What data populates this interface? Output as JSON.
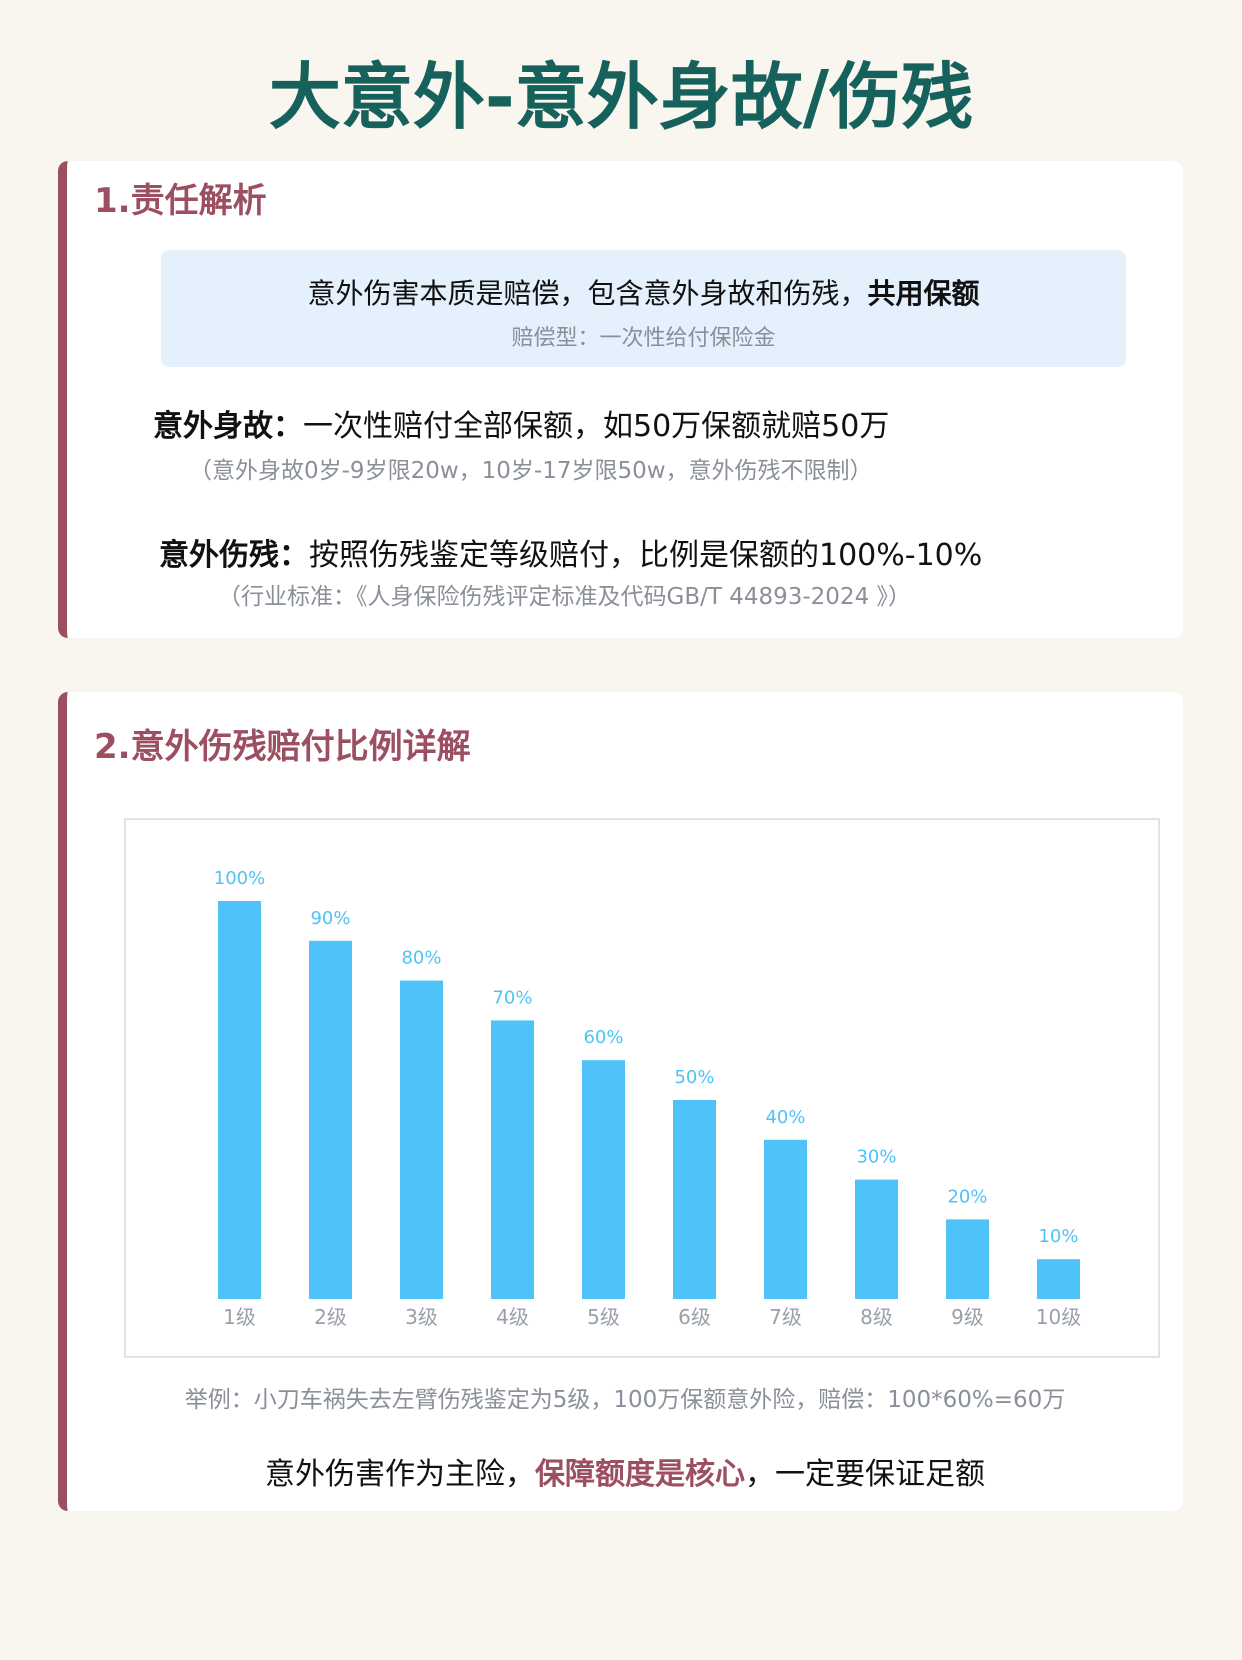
{
  "title": "大意外-意外身故/伤残",
  "section1": {
    "heading": "1.责任解析",
    "box_line": "意外伤害本质是赔偿，包含意外身故和伤残，",
    "box_line_bold": "共用保额",
    "box_sub": "赔偿型：一次性给付保险金",
    "death_label": "意外身故：",
    "death_text": "一次性赔付全部保额，如50万保额就赔50万",
    "death_note": "（意外身故0岁-9岁限20w，10岁-17岁限50w，意外伤残不限制）",
    "disability_label": "意外伤残：",
    "disability_text": "按照伤残鉴定等级赔付，比例是保额的100%-10%",
    "disability_note": "（行业标准：《人身保险伤残评定标准及代码GB/T 44893-2024 》）"
  },
  "section2": {
    "heading": "2.意外伤残赔付比例详解",
    "example": "举例：小刀车祸失去左臂伤残鉴定为5级，100万保额意外险，赔偿：100*60%=60万",
    "conclusion_pre": "意外伤害作为主险，",
    "conclusion_highlight": "保障额度是核心",
    "conclusion_post": "，一定要保证足额"
  },
  "chart_data": {
    "type": "bar",
    "categories": [
      "1级",
      "2级",
      "3级",
      "4级",
      "5级",
      "6级",
      "7级",
      "8级",
      "9级",
      "10级"
    ],
    "values": [
      100,
      90,
      80,
      70,
      60,
      50,
      40,
      30,
      20,
      10
    ],
    "data_labels": [
      "100%",
      "90%",
      "80%",
      "70%",
      "60%",
      "50%",
      "40%",
      "30%",
      "20%",
      "10%"
    ],
    "ylim": [
      0,
      100
    ],
    "grid": false,
    "bar_color": "#4fc3f7"
  },
  "colors": {
    "title": "#17615c",
    "accent": "#9b4f60",
    "bar": "#4fc3f7"
  }
}
